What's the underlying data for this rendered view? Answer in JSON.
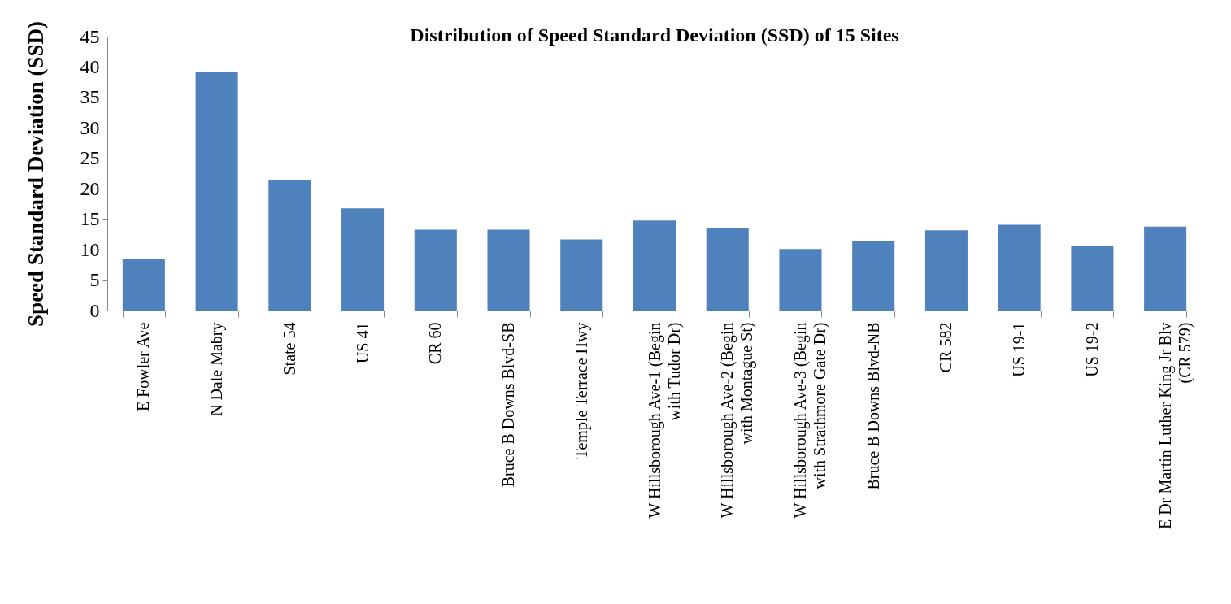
{
  "chart_data": {
    "type": "bar",
    "title": "Distribution of Speed Standard Deviation (SSD) of 15 Sites",
    "ylabel": "Speed Standard Deviation (SSD)",
    "categories": [
      "E Fowler Ave",
      "N Dale Mabry",
      "State 54",
      "US 41",
      "CR 60",
      "Bruce B Downs Blvd-SB",
      "Temple Terrace Hwy",
      "W Hillsborough Ave-1 (Begin\nwith Tudor Dr)",
      "W Hillsborough Ave-2 (Begin\nwith Montague St)",
      "W Hillsborough Ave-3 (Begin\nwith Strathmore Gate Dr)",
      "Bruce B Downs Blvd-NB",
      "CR 582",
      "US 19-1",
      "US 19-2",
      "E Dr Martin Luther King Jr Blv\n(CR 579)"
    ],
    "values": [
      8.4,
      39.2,
      21.5,
      16.8,
      13.3,
      13.3,
      11.7,
      14.8,
      13.5,
      10.1,
      11.4,
      13.2,
      14.1,
      10.6,
      13.8
    ],
    "color": "#4f81bd",
    "ylim": [
      0,
      45
    ],
    "yticks": [
      0,
      5,
      10,
      15,
      20,
      25,
      30,
      35,
      40,
      45
    ],
    "grid": false
  }
}
